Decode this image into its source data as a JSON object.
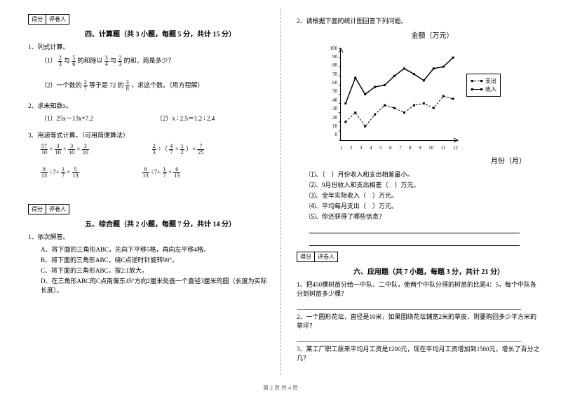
{
  "scoreBox": {
    "score": "得分",
    "grader": "评卷人"
  },
  "left": {
    "s4": {
      "title": "四、计算题（共 3 小题，每题 5 分，共计 15 分）",
      "q1": {
        "label": "1、列式计算。",
        "p1_pre": "（1）",
        "p1_mid1": "与",
        "p1_mid2": "的和除以",
        "p1_mid3": "与",
        "p1_end": "的和，商是多少？",
        "f1": {
          "n": "2",
          "d": "3"
        },
        "f2": {
          "n": "5",
          "d": "6"
        },
        "f3": {
          "n": "3",
          "d": "4"
        },
        "f4": {
          "n": "2",
          "d": "3"
        },
        "p2_pre": "（2）一个数的",
        "p2_mid": "等于是 72 的",
        "p2_end": "，求这个数。（用方程解）",
        "f5": {
          "n": "2",
          "d": "7"
        },
        "f6": {
          "n": "3",
          "d": "8"
        }
      },
      "q2": {
        "label": "2、求未知数x。",
        "a": "（1）25x－13x=7.2",
        "b": "（2）x ∶ 2.5＝1.2 ∶ 2.4"
      },
      "q3": {
        "label": "3、用递等式计算。（可用简便算法）",
        "e1": {
          "f1": {
            "n": "57",
            "d": "10"
          },
          "op1": "×",
          "f2": {
            "n": "3",
            "d": "10"
          },
          "op2": "+",
          "f3": {
            "n": "3",
            "d": "10"
          },
          "op3": "×",
          "f4": {
            "n": "3",
            "d": "10"
          }
        },
        "e2": {
          "f1": {
            "n": "2",
            "d": "3"
          },
          "op1": "÷（",
          "f2": {
            "n": "4",
            "d": "7"
          },
          "op2": "+",
          "f3": {
            "n": "1",
            "d": "2"
          },
          "op3": "）×",
          "f4": {
            "n": "7",
            "d": "25"
          }
        },
        "e3": {
          "f1": {
            "n": "8",
            "d": "13"
          },
          "op1": "÷7+",
          "f2": {
            "n": "1",
            "d": "7"
          },
          "op2": "×",
          "f3": {
            "n": "5",
            "d": "13"
          }
        },
        "e4": {
          "f1": {
            "n": "8",
            "d": "13"
          },
          "op1": "÷7+",
          "f2": {
            "n": "1",
            "d": "7"
          },
          "op2": "×",
          "f3": {
            "n": "6",
            "d": "13"
          }
        }
      }
    },
    "s5": {
      "title": "五、综合题（共 2 小题，每题 7 分，共计 14 分）",
      "q1": {
        "label": "1、依次解答。",
        "a": "A、将下面的三角形ABC，先向下平移5格，再向左平移4格。",
        "b": "B、将下面的三角形ABC，绕C点逆时针旋转90°。",
        "c": "C、将下面的三角形ABC，按2:1放大。",
        "d": "D、在三角形ABC的C点南偏东45°方向2厘米处画一个直径3厘米的圆（长度为实际长度）。"
      }
    }
  },
  "right": {
    "q2": {
      "label": "2、请根据下面的统计图回答下列问题。"
    },
    "chart": {
      "title": "金额（万元）",
      "yTicks": [
        "100",
        "90",
        "80",
        "70",
        "60",
        "50",
        "40",
        "30",
        "20",
        "10",
        "0"
      ],
      "xTicks": [
        "1",
        "2",
        "3",
        "4",
        "5",
        "6",
        "7",
        "8",
        "9",
        "10",
        "11",
        "12"
      ],
      "xLabel": "月份（月）",
      "ylim": [
        0,
        100
      ],
      "legend": {
        "a": "支出",
        "b": "收入"
      },
      "colors": {
        "line": "#000000",
        "grid": "#ffffff",
        "bg": "#ffffff"
      },
      "series": {
        "income": {
          "style": "solid",
          "marker": "square",
          "values": [
            40,
            68,
            50,
            58,
            60,
            70,
            78,
            72,
            65,
            78,
            80,
            90
          ]
        },
        "expense": {
          "style": "dashed",
          "marker": "square",
          "values": [
            20,
            30,
            15,
            28,
            38,
            35,
            30,
            38,
            40,
            35,
            48,
            45
          ]
        }
      }
    },
    "subq": {
      "a": "⑴、（　）月份收入和支出相差最小。",
      "b": "⑵、9月份收入和支出相差（　）万元。",
      "c": "⑶、全年实际收入（　）万元。",
      "d": "⑷、平均每月支出（　）万元。",
      "e": "⑸、你还获得了哪些信息？"
    },
    "s6": {
      "title": "六、应用题（共 7 小题，每题 3 分，共计 21 分）",
      "q1": "1、把450棵树苗分给一中队、二中队，使两个中队分得的树苗的比是4：5，每个中队各分到树苗多少棵？",
      "q2": "2、一个圆形花坛，直径是10米，如果围绕花坛铺宽2米的草皮，则要购回多少平方米的草坪？",
      "q3": "3、某工厂职工原来平均月工资是1200元，现在平均月工资增加到1500元，增长了百分之几？"
    }
  },
  "footer": "第 2 页 共 4 页"
}
